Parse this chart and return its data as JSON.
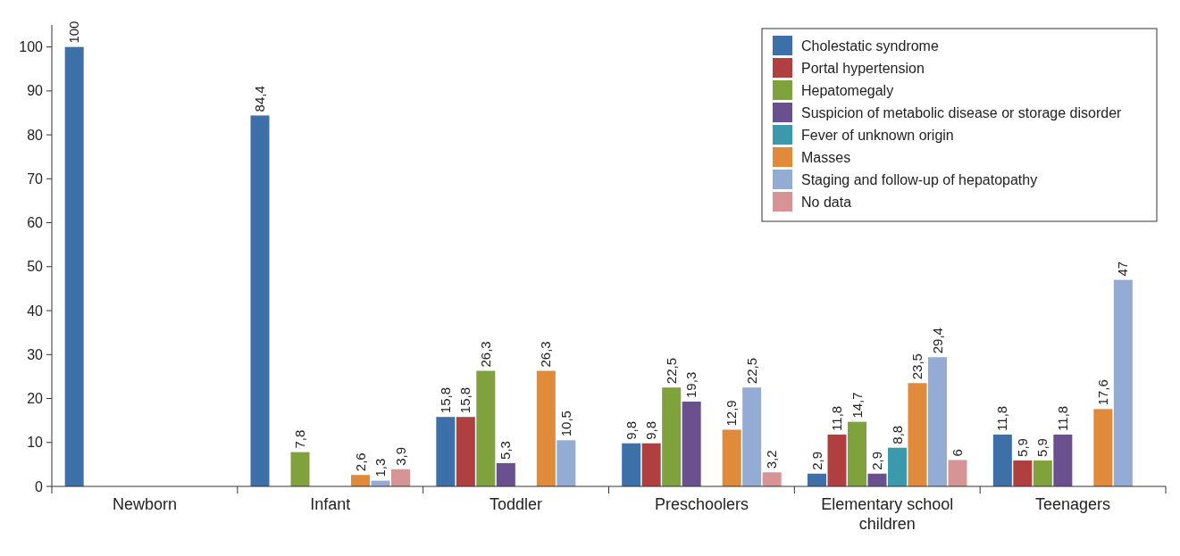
{
  "chart_data": {
    "type": "bar",
    "categories": [
      "Newborn",
      "Infant",
      "Toddler",
      "Preschoolers",
      "Elementary school children",
      "Teenagers"
    ],
    "ylim": [
      0,
      105
    ],
    "yticks": [
      0,
      10,
      20,
      30,
      40,
      50,
      60,
      70,
      80,
      90,
      100
    ],
    "legend": "top right",
    "grid": false,
    "series": [
      {
        "name": "Cholestatic syndrome",
        "color": "#3d6fa8",
        "values": [
          100,
          84.4,
          15.8,
          9.8,
          2.9,
          11.8
        ],
        "value_labels": [
          "100",
          "84,4",
          "15,8",
          "9,8",
          "2,9",
          "11,8"
        ]
      },
      {
        "name": "Portal hypertension",
        "color": "#b04040",
        "values": [
          null,
          null,
          15.8,
          9.8,
          11.8,
          5.9
        ],
        "value_labels": [
          null,
          null,
          "15,8",
          "9,8",
          "11,8",
          "5,9"
        ]
      },
      {
        "name": "Hepatomegaly",
        "color": "#7fa23c",
        "values": [
          null,
          7.8,
          26.3,
          22.5,
          14.7,
          5.9
        ],
        "value_labels": [
          null,
          "7,8",
          "26,3",
          "22,5",
          "14,7",
          "5,9"
        ]
      },
      {
        "name": "Suspicion of metabolic disease or storage disorder",
        "color": "#6b5090",
        "values": [
          null,
          null,
          5.3,
          19.3,
          2.9,
          11.8
        ],
        "value_labels": [
          null,
          null,
          "5,3",
          "19,3",
          "2,9",
          "11,8"
        ]
      },
      {
        "name": "Fever of unknown origin",
        "color": "#3a9aab",
        "values": [
          null,
          null,
          null,
          null,
          8.8,
          null
        ],
        "value_labels": [
          null,
          null,
          null,
          null,
          "8,8",
          null
        ]
      },
      {
        "name": "Masses",
        "color": "#e08a3c",
        "values": [
          null,
          2.6,
          26.3,
          12.9,
          23.5,
          17.6
        ],
        "value_labels": [
          null,
          "2,6",
          "26,3",
          "12,9",
          "23,5",
          "17,6"
        ]
      },
      {
        "name": "Staging and follow-up of hepatopathy",
        "color": "#94acd4",
        "values": [
          null,
          1.3,
          10.5,
          22.5,
          29.4,
          47
        ],
        "value_labels": [
          null,
          "1,3",
          "10,5",
          "22,5",
          "29,4",
          "47"
        ]
      },
      {
        "name": "No data",
        "color": "#d69494",
        "values": [
          null,
          3.9,
          null,
          3.2,
          6,
          null
        ],
        "value_labels": [
          null,
          "3,9",
          null,
          "3,2",
          "6",
          null
        ]
      }
    ]
  }
}
